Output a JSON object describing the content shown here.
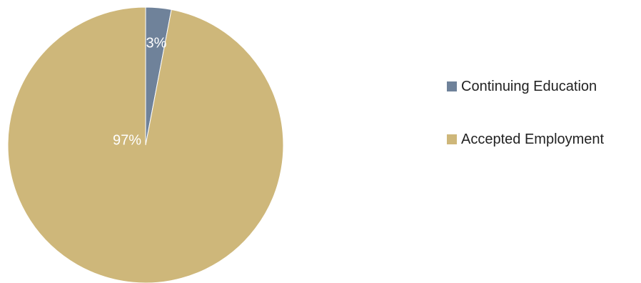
{
  "chart_data": {
    "type": "pie",
    "categories": [
      "Continuing Education",
      "Accepted Employment"
    ],
    "values": [
      3,
      97
    ],
    "labels": [
      "3%",
      "97%"
    ],
    "colors": [
      "#6f829a",
      "#ceb77a"
    ],
    "label_color": "#ffffff",
    "start_angle_deg": 0,
    "direction": "clockwise",
    "legend_position": "right"
  }
}
